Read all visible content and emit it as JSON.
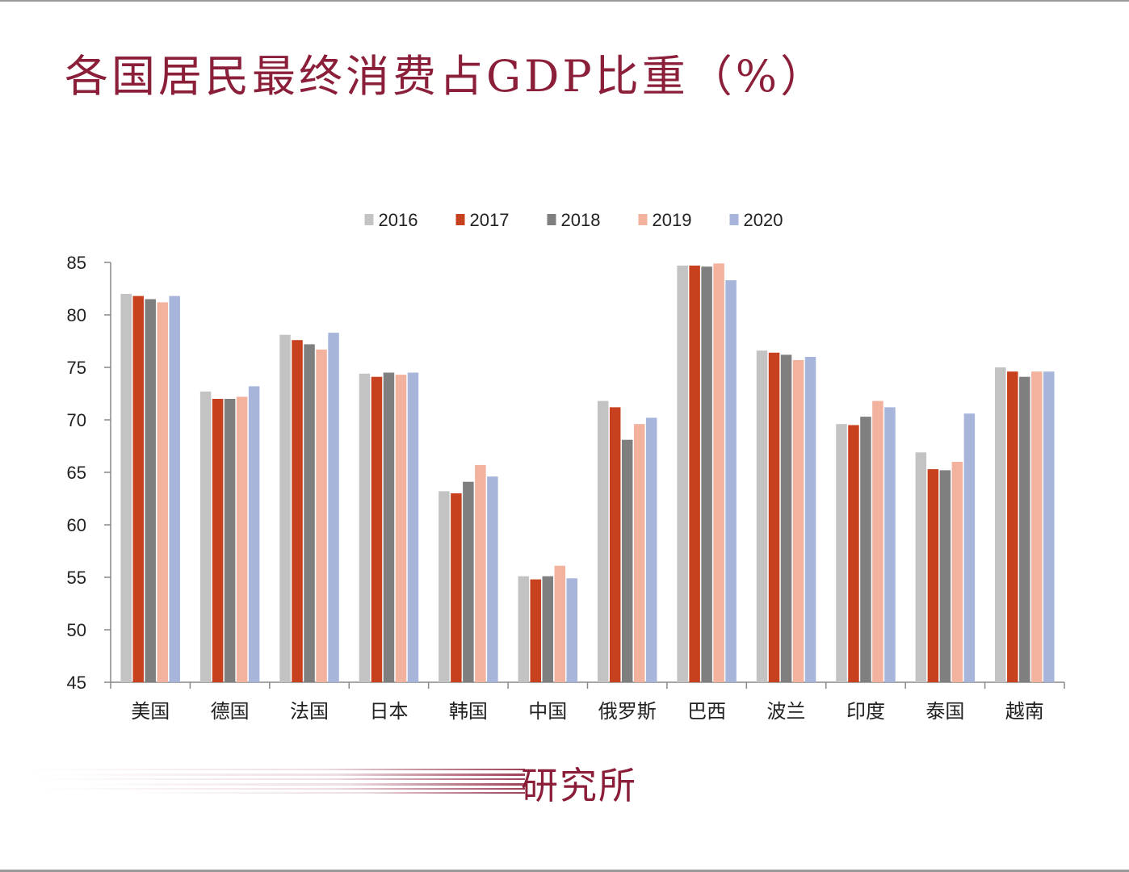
{
  "title": "各国居民最终消费占GDP比重（%）",
  "footer": {
    "label": "研究所"
  },
  "chart_data": {
    "type": "bar",
    "title": "",
    "xlabel": "",
    "ylabel": "",
    "ylim": [
      45,
      85
    ],
    "yticks": [
      45,
      50,
      55,
      60,
      65,
      70,
      75,
      80,
      85
    ],
    "grid": false,
    "legend_position": "top",
    "categories": [
      "美国",
      "德国",
      "法国",
      "日本",
      "韩国",
      "中国",
      "俄罗斯",
      "巴西",
      "波兰",
      "印度",
      "泰国",
      "越南"
    ],
    "series": [
      {
        "name": "2016",
        "color": "#c3c3c3",
        "values": [
          82.0,
          72.7,
          78.1,
          74.4,
          63.2,
          55.1,
          71.8,
          84.7,
          76.6,
          69.6,
          66.9,
          75.0
        ]
      },
      {
        "name": "2017",
        "color": "#c8411f",
        "values": [
          81.8,
          72.0,
          77.6,
          74.1,
          63.0,
          54.8,
          71.2,
          84.7,
          76.4,
          69.5,
          65.3,
          74.6
        ]
      },
      {
        "name": "2018",
        "color": "#7f7f7f",
        "values": [
          81.5,
          72.0,
          77.2,
          74.5,
          64.1,
          55.1,
          68.1,
          84.6,
          76.2,
          70.3,
          65.2,
          74.1
        ]
      },
      {
        "name": "2019",
        "color": "#f2b29e",
        "values": [
          81.2,
          72.2,
          76.7,
          74.3,
          65.7,
          56.1,
          69.6,
          84.9,
          75.7,
          71.8,
          66.0,
          74.6
        ]
      },
      {
        "name": "2020",
        "color": "#a8b5db",
        "values": [
          81.8,
          73.2,
          78.3,
          74.5,
          64.6,
          54.9,
          70.2,
          83.3,
          76.0,
          71.2,
          70.6,
          74.6
        ]
      }
    ]
  }
}
